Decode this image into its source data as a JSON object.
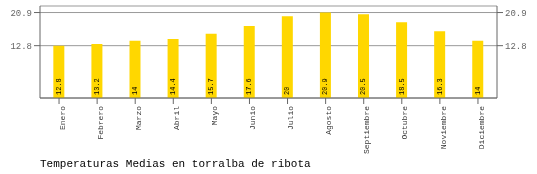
{
  "chart_data": {
    "type": "bar",
    "title": "Temperaturas Medias en torralba de ribota",
    "categories": [
      "Enero",
      "Febrero",
      "Marzo",
      "Abril",
      "Mayo",
      "Junio",
      "Julio",
      "Agosto",
      "Septiembre",
      "Octubre",
      "Noviembre",
      "Diciembre"
    ],
    "values": [
      12.8,
      13.2,
      14.0,
      14.4,
      15.7,
      17.6,
      20.0,
      20.9,
      20.5,
      18.5,
      16.3,
      14.0
    ],
    "color": "#FFD700",
    "ylim": [
      0,
      22.5
    ],
    "yticks": [
      12.8,
      20.9
    ],
    "y2lim": [
      0,
      22.5
    ],
    "y2ticks": [
      12.8,
      20.9
    ],
    "grid": true,
    "data_labels": true
  }
}
